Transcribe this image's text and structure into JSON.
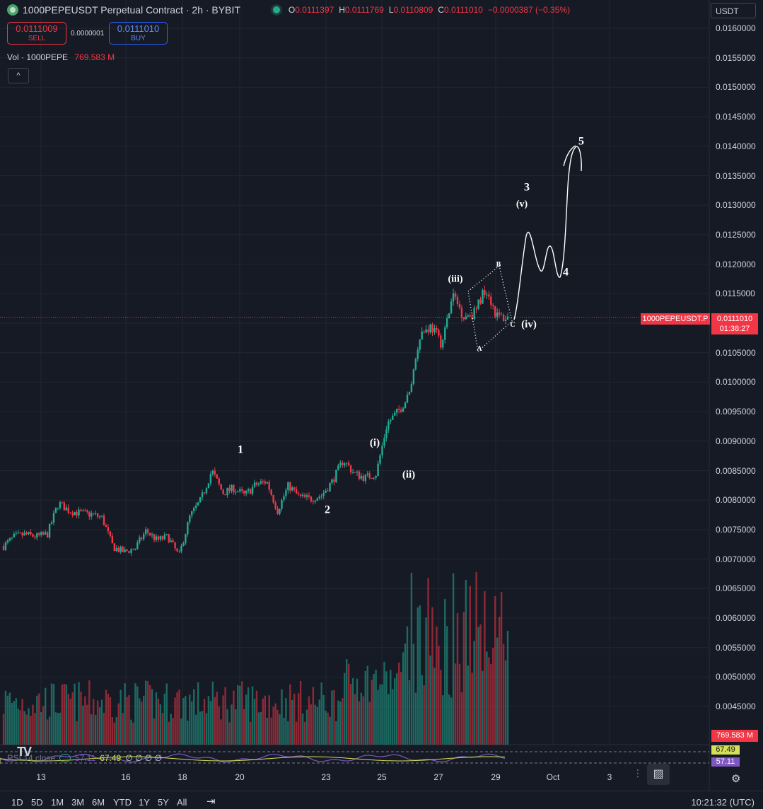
{
  "header": {
    "title": "1000PEPEUSDT Perpetual Contract · 2h · BYBIT",
    "ohlc": [
      {
        "k": "O",
        "v": "0.0111397"
      },
      {
        "k": "H",
        "v": "0.0111769"
      },
      {
        "k": "L",
        "v": "0.0110809"
      },
      {
        "k": "C",
        "v": "0.0111010"
      }
    ],
    "change": "−0.0000387 (−0.35%)"
  },
  "trade": {
    "sell_price": "0.0111009",
    "sell_label": "SELL",
    "spread": "0.0000001",
    "buy_price": "0.0111010",
    "buy_label": "BUY"
  },
  "volume_legend": {
    "name": "Vol · 1000PEPE",
    "value": "769.583 M"
  },
  "collapse_icon": "^",
  "currency": "USDT",
  "price_tag": {
    "symbol": "1000PEPEUSDT.P",
    "price": "0.0111010",
    "countdown": "01:38:27"
  },
  "volume_tag": "769.583 M",
  "rsi": {
    "label": "RSI 14 close",
    "v1": "57.11",
    "v2": "67.49",
    "zeros": "∅ ∅ ∅ ∅",
    "tag_a": "67.49",
    "tag_b": "57.11"
  },
  "tv_logo": "TV",
  "x_labels": [
    "13",
    "16",
    "18",
    "20",
    "23",
    "25",
    "27",
    "29",
    "Oct",
    "3"
  ],
  "ranges": [
    "1D",
    "5D",
    "1M",
    "3M",
    "6M",
    "YTD",
    "1Y",
    "5Y",
    "All"
  ],
  "clock": "10:21:32 (UTC)",
  "colors": {
    "up": "#22ab94",
    "down": "#f23645",
    "bg": "#161a25",
    "grid": "#222631"
  },
  "chart_data": {
    "type": "candlestick",
    "symbol": "1000PEPEUSDT.P",
    "interval": "2h",
    "y_axis_ticks": [
      "0.0160000",
      "0.0155000",
      "0.0150000",
      "0.0145000",
      "0.0140000",
      "0.0135000",
      "0.0130000",
      "0.0125000",
      "0.0120000",
      "0.0115000",
      "0.0110000",
      "0.0105000",
      "0.0100000",
      "0.0095000",
      "0.0090000",
      "0.0085000",
      "0.0080000",
      "0.0075000",
      "0.0070000",
      "0.0065000",
      "0.0060000",
      "0.0055000",
      "0.0050000",
      "0.0045000"
    ],
    "ylim": [
      0.0045,
      0.0162
    ],
    "last_price": 0.011101,
    "close_path": [
      0.00722,
      0.00738,
      0.00742,
      0.00738,
      0.00742,
      0.00795,
      0.00782,
      0.00778,
      0.00776,
      0.0077,
      0.0072,
      0.00712,
      0.00718,
      0.00748,
      0.00732,
      0.00738,
      0.00705,
      0.00772,
      0.008,
      0.0085,
      0.00812,
      0.0082,
      0.00808,
      0.00826,
      0.00832,
      0.00782,
      0.00825,
      0.00805,
      0.00802,
      0.00808,
      0.00832,
      0.00868,
      0.00845,
      0.00838,
      0.00845,
      0.0093,
      0.0095,
      0.00978,
      0.01082,
      0.01095,
      0.01065,
      0.01148,
      0.01112,
      0.01118,
      0.01162,
      0.01112,
      0.01108
    ],
    "wave_labels": [
      {
        "text": "1",
        "price": 0.0088
      },
      {
        "text": "2",
        "price": 0.00778
      },
      {
        "text": "(i)",
        "price": 0.00892
      },
      {
        "text": "(ii)",
        "price": 0.00838
      },
      {
        "text": "(iii)",
        "price": 0.0117
      },
      {
        "text": "A",
        "price": 0.01053
      },
      {
        "text": "B",
        "price": 0.01196
      },
      {
        "text": "C",
        "price": 0.01094
      },
      {
        "text": "(iv)",
        "price": 0.01093
      },
      {
        "text": "3",
        "price": 0.01325
      },
      {
        "text": "(v)",
        "price": 0.01297
      },
      {
        "text": "4",
        "price": 0.01181
      },
      {
        "text": "5",
        "price": 0.01403
      }
    ]
  }
}
